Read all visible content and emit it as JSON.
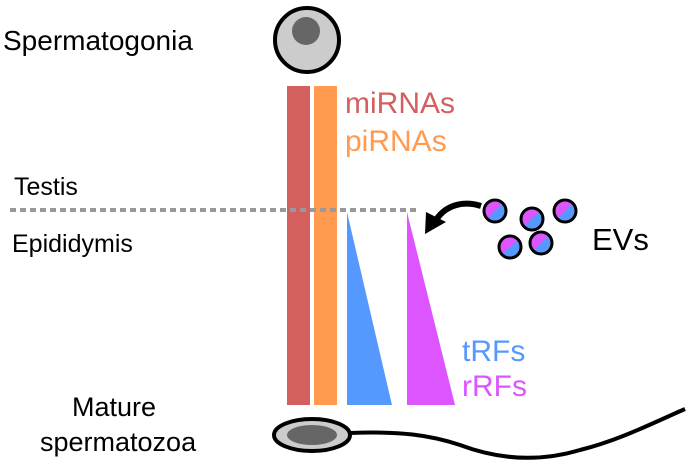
{
  "stages": {
    "top": "Spermatogonia",
    "testis": "Testis",
    "epididymis": "Epididymis",
    "bottom_line1": "Mature",
    "bottom_line2": "spermatozoa"
  },
  "rna_labels": {
    "mirna": "miRNAs",
    "pirna": "piRNAs",
    "trf": "tRFs",
    "rrf": "rRFs"
  },
  "ev_label": "EVs",
  "colors": {
    "mirna": "#d45f5f",
    "pirna": "#ff9a4f",
    "trf": "#5599ff",
    "rrf": "#dd55ff",
    "cell": "#cccccc",
    "nucleus": "#666666",
    "divider": "#999999"
  }
}
